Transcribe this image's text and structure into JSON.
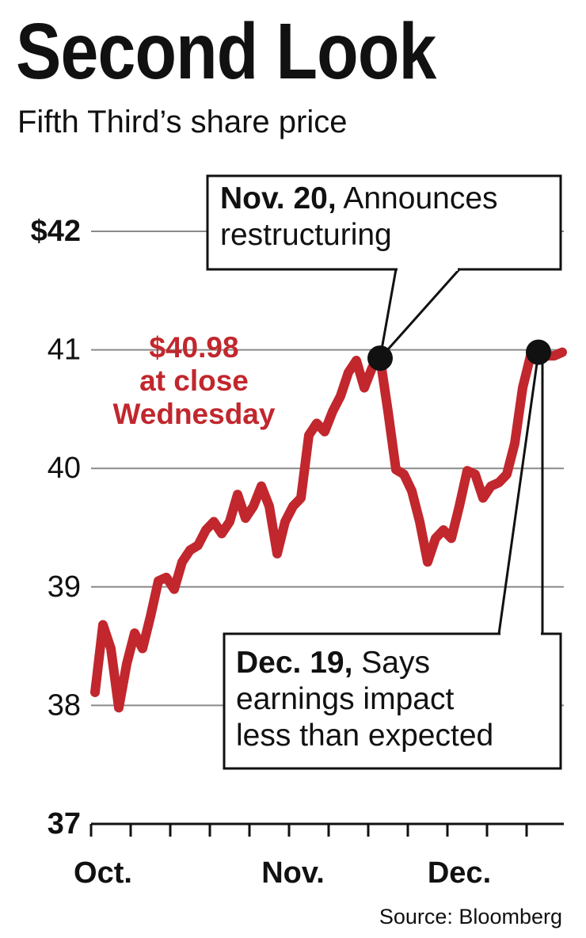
{
  "chart_data": {
    "type": "line",
    "title": "Second Look",
    "subtitle": "Fifth Third’s share price",
    "source": "Source: Bloomberg",
    "categories": [
      null,
      "Oct.",
      null,
      null,
      null,
      null,
      null,
      null,
      null,
      null,
      null,
      null,
      null,
      null,
      null,
      null,
      null,
      null,
      null,
      null,
      null,
      null,
      null,
      null,
      null,
      "Nov.",
      null,
      null,
      null,
      null,
      null,
      null,
      null,
      null,
      null,
      null,
      null,
      null,
      null,
      null,
      null,
      null,
      null,
      null,
      null,
      null,
      "Dec.",
      null,
      null,
      null,
      null,
      null,
      null,
      null,
      null,
      null,
      null,
      null,
      null,
      null
    ],
    "values": [
      38.11,
      38.68,
      38.48,
      37.98,
      38.35,
      38.61,
      38.48,
      38.75,
      39.05,
      39.08,
      38.98,
      39.21,
      39.31,
      39.35,
      39.48,
      39.55,
      39.45,
      39.55,
      39.78,
      39.58,
      39.68,
      39.85,
      39.68,
      39.28,
      39.55,
      39.68,
      39.75,
      40.28,
      40.38,
      40.31,
      40.48,
      40.61,
      40.81,
      40.91,
      40.68,
      40.85,
      40.93,
      40.48,
      39.99,
      39.95,
      39.81,
      39.55,
      39.21,
      39.41,
      39.48,
      39.41,
      39.68,
      39.98,
      39.95,
      39.75,
      39.85,
      39.88,
      39.95,
      40.21,
      40.68,
      40.95,
      40.98,
      40.95,
      40.95,
      40.98
    ],
    "value_labels": [
      null,
      null,
      null,
      null,
      null,
      null,
      null,
      null,
      null,
      null,
      null,
      null,
      null,
      null,
      null,
      null,
      null,
      null,
      null,
      null,
      null,
      null,
      null,
      null,
      null,
      null,
      null,
      null,
      null,
      null,
      null,
      null,
      null,
      null,
      null,
      null,
      null,
      null,
      null,
      null,
      null,
      null,
      null,
      null,
      null,
      null,
      null,
      null,
      null,
      null,
      null,
      null,
      null,
      null,
      null,
      null,
      null,
      null,
      null,
      "$40.98"
    ],
    "close_note": [
      "at close",
      "Wednesday"
    ],
    "color": "#c1272d",
    "ylim": [
      37,
      42
    ],
    "yticks": [
      37,
      38,
      39,
      40,
      41,
      {
        "value": 42,
        "label": "$42"
      }
    ],
    "grid": true,
    "annotations": [
      {
        "date": "Nov. 20,",
        "lines": [
          "Announces",
          "restructuring"
        ]
      },
      {
        "date": "Dec. 19,",
        "lines": [
          "Says",
          "earnings impact",
          "less than expected"
        ]
      }
    ]
  }
}
